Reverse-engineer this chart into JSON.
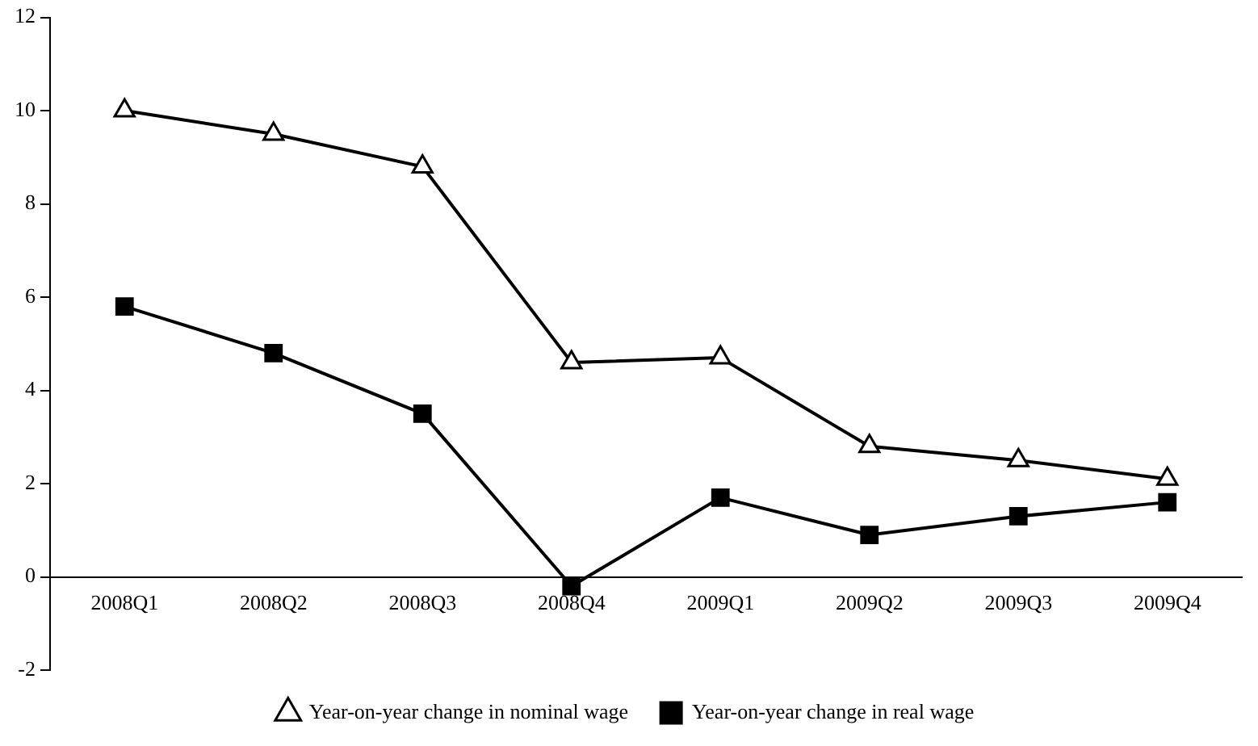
{
  "chart_data": {
    "type": "line",
    "categories": [
      "2008Q1",
      "2008Q2",
      "2008Q3",
      "2008Q4",
      "2009Q1",
      "2009Q2",
      "2009Q3",
      "2009Q4"
    ],
    "series": [
      {
        "name": "Year-on-year change in nominal wage",
        "color": "#000000",
        "marker": "triangle",
        "values": [
          10,
          9.5,
          8.8,
          4.6,
          4.7,
          2.8,
          2.5,
          2.1
        ]
      },
      {
        "name": "Year-on-year change in real wage",
        "color": "#000000",
        "marker": "square",
        "values": [
          5.8,
          4.8,
          3.5,
          -0.2,
          1.7,
          0.9,
          1.3,
          1.6
        ]
      }
    ],
    "ylim": [
      -2,
      12
    ],
    "yticks": [
      -2,
      0,
      2,
      4,
      6,
      8,
      10,
      12
    ],
    "grid": false,
    "legend": "bottom",
    "line_style": "solid"
  }
}
